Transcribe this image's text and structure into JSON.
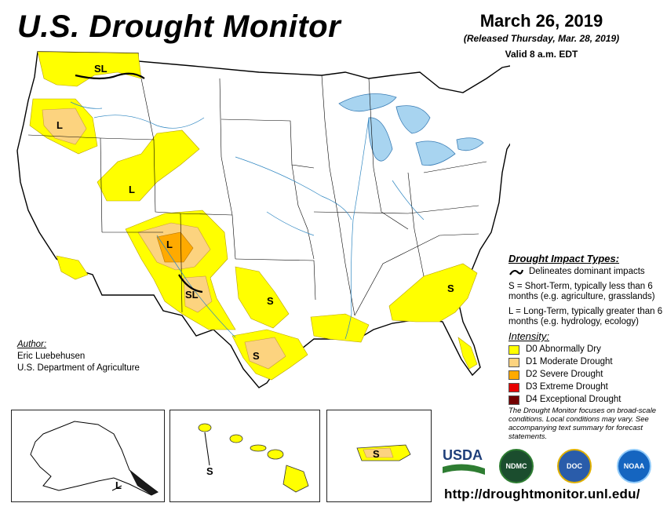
{
  "header": {
    "title": "U.S. Drought Monitor",
    "date": "March 26, 2019",
    "released": "(Released Thursday, Mar. 28, 2019)",
    "valid": "Valid 8 a.m. EDT"
  },
  "legend": {
    "impact_heading": "Drought Impact Types:",
    "delineates": "Delineates dominant impacts",
    "short_term": "S = Short-Term, typically less than 6 months (e.g. agriculture, grasslands)",
    "long_term": "L = Long-Term, typically greater than 6 months (e.g. hydrology, ecology)",
    "intensity_heading": "Intensity:",
    "categories": [
      {
        "label": "D0 Abnormally Dry",
        "color": "#ffff00"
      },
      {
        "label": "D1 Moderate Drought",
        "color": "#fcd37f"
      },
      {
        "label": "D2 Severe Drought",
        "color": "#ffaa00"
      },
      {
        "label": "D3 Extreme Drought",
        "color": "#e60000"
      },
      {
        "label": "D4 Exceptional Drought",
        "color": "#730000"
      }
    ]
  },
  "author": {
    "heading": "Author:",
    "name": "Eric Luebehusen",
    "org": "U.S. Department of Agriculture"
  },
  "note": "The Drought Monitor focuses on broad-scale conditions. Local conditions may vary. See accompanying text summary for forecast statements.",
  "url": "http://droughtmonitor.unl.edu/",
  "map_labels": {
    "wa": "SL",
    "or": "L",
    "ut": "L",
    "az": "L",
    "nm": "SL",
    "tx_n": "S",
    "tx_s": "S",
    "sc": "S",
    "ak": "L",
    "hi": "S",
    "pr": "S"
  },
  "logos": {
    "usda": "USDA",
    "ndmc": "NDMC",
    "commerce": "DOC",
    "noaa": "NOAA"
  }
}
